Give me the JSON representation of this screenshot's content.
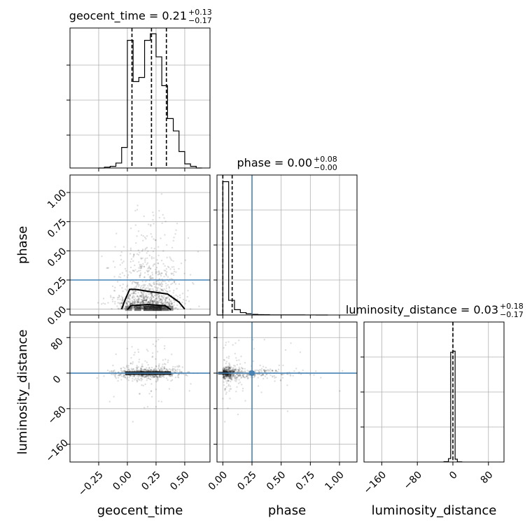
{
  "chart_data": {
    "type": "corner",
    "parameters": [
      "geocent_time",
      "phase",
      "luminosity_distance"
    ],
    "truth": {
      "geocent_time": null,
      "phase": 0.25,
      "luminosity_distance": 0
    },
    "titles": [
      {
        "param": "geocent_time",
        "main": "geocent_time = 0.21",
        "sup": "+0.13",
        "sub": "−0.17"
      },
      {
        "param": "phase",
        "main": "phase = 0.00",
        "sup": "+0.08",
        "sub": "−0.00"
      },
      {
        "param": "luminosity_distance",
        "main": "luminosity_distance = 0.03",
        "sup": "+0.18",
        "sub": "−0.17"
      }
    ],
    "axes": {
      "geocent_time": {
        "range": [
          -0.5,
          0.72
        ],
        "ticks": [
          -0.25,
          0.0,
          0.25,
          0.5
        ],
        "tick_labels": [
          "−0.25",
          "0.00",
          "0.25",
          "0.50"
        ],
        "label": "geocent_time"
      },
      "phase": {
        "range": [
          -0.05,
          1.15
        ],
        "ticks": [
          0.0,
          0.25,
          0.5,
          0.75,
          1.0
        ],
        "tick_labels": [
          "0.00",
          "0.25",
          "0.50",
          "0.75",
          "1.00"
        ],
        "label": "phase"
      },
      "luminosity_distance": {
        "range": [
          -200,
          115
        ],
        "ticks": [
          -160,
          -80,
          0,
          80
        ],
        "tick_labels": [
          "−160",
          "−80",
          "0",
          "80"
        ],
        "label": "luminosity_distance"
      }
    },
    "histograms": {
      "geocent_time": {
        "edges": [
          -0.25,
          -0.2,
          -0.15,
          -0.1,
          -0.05,
          0.0,
          0.05,
          0.1,
          0.15,
          0.2,
          0.25,
          0.3,
          0.35,
          0.4,
          0.45,
          0.5,
          0.55,
          0.6,
          0.65
        ],
        "counts": [
          0,
          1,
          2,
          6,
          25,
          155,
          105,
          110,
          155,
          163,
          135,
          100,
          60,
          45,
          20,
          5,
          2,
          0
        ],
        "ymax": 170,
        "quantiles": [
          0.04,
          0.21,
          0.34
        ]
      },
      "phase": {
        "edges": [
          -0.05,
          0.0,
          0.05,
          0.1,
          0.15,
          0.2,
          0.25,
          0.3,
          0.35,
          0.4,
          0.5,
          0.6,
          0.7,
          0.8,
          0.9
        ],
        "counts": [
          0,
          1000,
          110,
          40,
          18,
          9,
          5,
          3,
          2,
          1,
          1,
          0.5,
          0.3,
          0
        ],
        "ymax": 1050,
        "quantiles": [
          0.0,
          0.08
        ]
      },
      "luminosity_distance": {
        "edges": [
          -20,
          -10,
          -5,
          0,
          5,
          10,
          20
        ],
        "counts": [
          3,
          30,
          980,
          990,
          25,
          2
        ],
        "ymax": 1250,
        "quantiles": [
          0.03
        ]
      }
    },
    "scatter_regions": [
      {
        "x": "geocent_time",
        "y": "phase",
        "n": 1100,
        "x_mean": 0.18,
        "x_sd": 0.14,
        "y_scale": 0.22
      },
      {
        "x": "geocent_time",
        "y": "luminosity_distance",
        "n": 700,
        "x_mean": 0.18,
        "x_sd": 0.15,
        "y_scale": 6
      },
      {
        "x": "phase",
        "y": "luminosity_distance",
        "n": 700,
        "x_scale": 0.2,
        "y_scale": 6
      }
    ],
    "grid": true
  }
}
